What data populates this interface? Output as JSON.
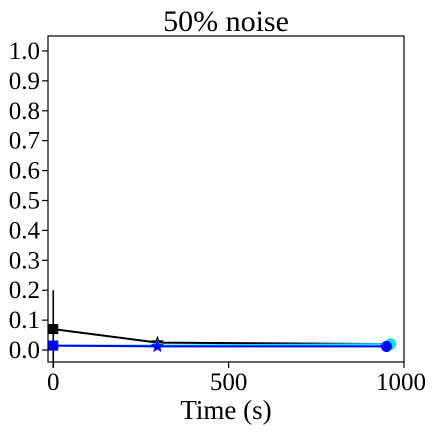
{
  "chart_data": {
    "type": "line",
    "title": "50% noise",
    "xlabel": "Time (s)",
    "ylabel": "",
    "xlim": [
      -15,
      1000
    ],
    "ylim": [
      -0.04,
      1.05
    ],
    "xticks": [
      0,
      500,
      1000
    ],
    "xtick_labels": [
      "0",
      "500",
      "1000"
    ],
    "yticks": [
      0.0,
      0.1,
      0.2,
      0.3,
      0.4,
      0.5,
      0.6,
      0.7,
      0.8,
      0.9,
      1.0
    ],
    "ytick_labels": [
      "0.0",
      "0.1",
      "0.2",
      "0.3",
      "0.4",
      "0.5",
      "0.6",
      "0.7",
      "0.8",
      "0.9",
      "1.0"
    ],
    "grid": false,
    "legend": "none",
    "series": [
      {
        "color": "#000000",
        "points": [
          {
            "x": 0,
            "y": 0.07,
            "err": 0.13,
            "marker": "square"
          },
          {
            "x": 297,
            "y": 0.025,
            "err": 0,
            "marker": "star"
          },
          {
            "x": 962,
            "y": 0.02,
            "err": 0,
            "marker": "circle"
          }
        ]
      },
      {
        "color": "#00e5ff",
        "points": [
          {
            "x": 0,
            "y": 0.015,
            "err": 0,
            "marker": "square"
          },
          {
            "x": 297,
            "y": 0.015,
            "err": 0,
            "marker": "star"
          },
          {
            "x": 962,
            "y": 0.02,
            "err": 0,
            "marker": "circle"
          }
        ]
      },
      {
        "color": "#0000ff",
        "points": [
          {
            "x": 0,
            "y": 0.015,
            "err": 0,
            "marker": "square"
          },
          {
            "x": 297,
            "y": 0.012,
            "err": 0,
            "marker": "star"
          },
          {
            "x": 950,
            "y": 0.012,
            "err": 0,
            "marker": "circle"
          }
        ]
      }
    ]
  }
}
